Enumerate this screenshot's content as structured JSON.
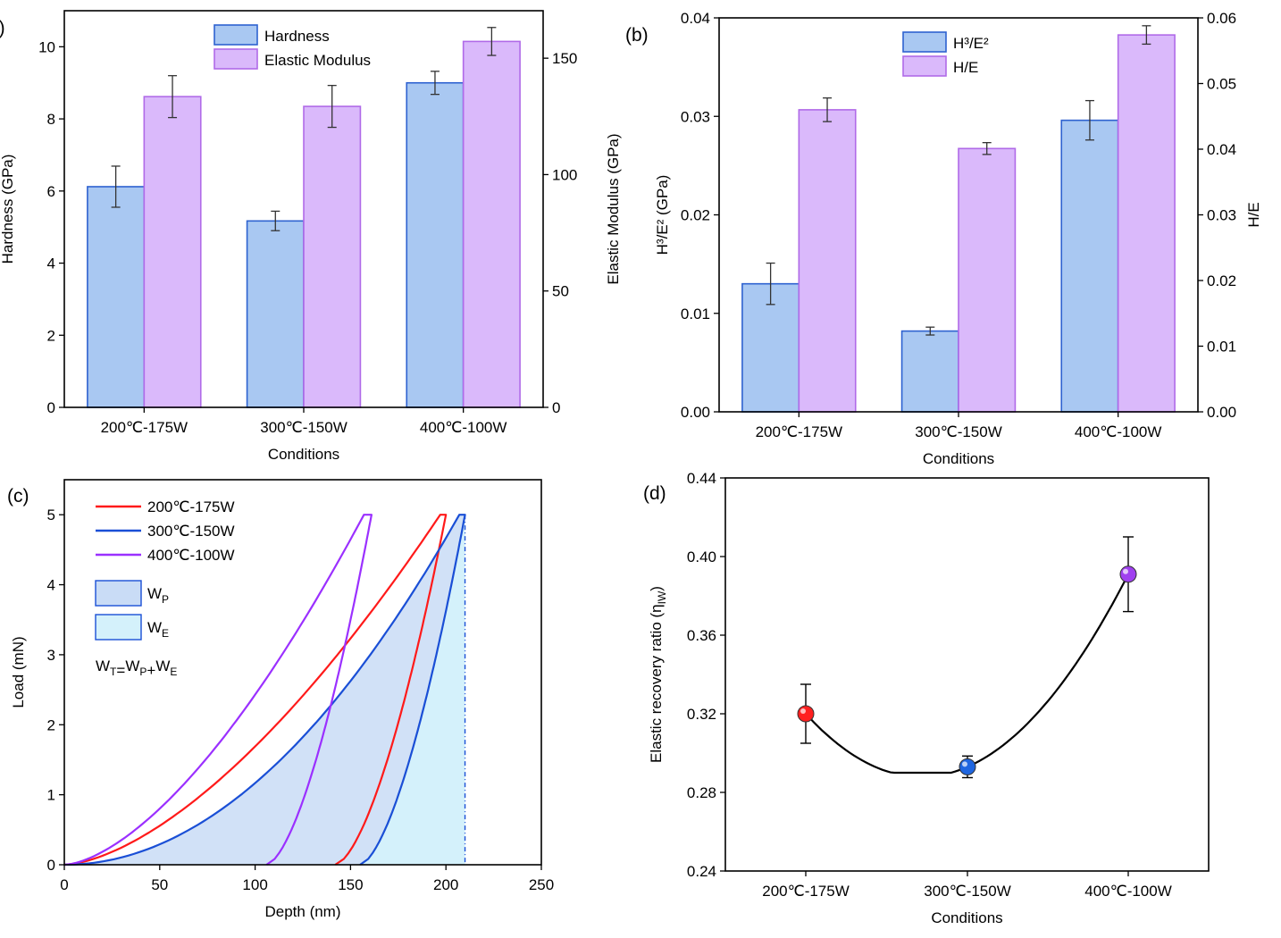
{
  "chart_data": [
    {
      "panel": "(a)",
      "type": "bar",
      "categories": [
        "200℃-175W",
        "300℃-150W",
        "400℃-100W"
      ],
      "xlabel": "Conditions",
      "ylabel": "Hardness (GPa)",
      "ylabel_right": "Elastic Modulus (GPa)",
      "ylim": [
        0,
        11
      ],
      "yticks": [
        0,
        2,
        4,
        6,
        8,
        10
      ],
      "ylim_right": [
        0,
        170.4
      ],
      "yticks_right": [
        0,
        50,
        100,
        150
      ],
      "legend_position": "top-center",
      "colors": {
        "blue": "#a9c8f2",
        "blue_edge": "#2e62d0",
        "purple": "#dab9fb",
        "purple_edge": "#b06ae8"
      },
      "series": [
        {
          "name": "Hardness",
          "axis": "left",
          "values": [
            6.12,
            5.17,
            9.0
          ],
          "errors": [
            0.57,
            0.27,
            0.32
          ]
        },
        {
          "name": "Elastic Modulus",
          "axis": "right",
          "values": [
            133.5,
            129.3,
            157.2
          ],
          "errors": [
            9.0,
            9.0,
            6.0
          ]
        }
      ]
    },
    {
      "panel": "(b)",
      "type": "bar",
      "categories": [
        "200℃-175W",
        "300℃-150W",
        "400℃-100W"
      ],
      "xlabel": "Conditions",
      "ylabel": "H³/E² (GPa)",
      "ylabel_right": "H/E",
      "ylim": [
        0,
        0.04
      ],
      "yticks": [
        "0.00",
        "0.01",
        "0.02",
        "0.03",
        "0.04"
      ],
      "ylim_right": [
        0,
        0.06
      ],
      "yticks_right": [
        "0.00",
        "0.01",
        "0.02",
        "0.03",
        "0.04",
        "0.05",
        "0.06"
      ],
      "legend_position": "top-center",
      "series": [
        {
          "name": "H³/E²",
          "axis": "left",
          "values": [
            0.013,
            0.0082,
            0.0296
          ],
          "errors": [
            0.0021,
            0.0004,
            0.002
          ]
        },
        {
          "name": "H/E",
          "axis": "right",
          "values": [
            0.046,
            0.0401,
            0.0574
          ],
          "errors": [
            0.0018,
            0.0009,
            0.0014
          ]
        }
      ]
    },
    {
      "panel": "(c)",
      "type": "line",
      "xlabel": "Depth (nm)",
      "ylabel": "Load (mN)",
      "xlim": [
        0,
        250
      ],
      "ylim": [
        0,
        5.5
      ],
      "xticks": [
        0,
        50,
        100,
        150,
        200,
        250
      ],
      "yticks": [
        0,
        1,
        2,
        3,
        4,
        5
      ],
      "legend_position": "top-left",
      "series": [
        {
          "name": "200℃-175W",
          "color": "#ff1a1a",
          "max_depth": 197,
          "max_load": 5.0,
          "hold_end_depth": 200,
          "final_depth": 142,
          "loading_shape": "a*x^1.6"
        },
        {
          "name": "300℃-150W",
          "color": "#1a4fd6",
          "max_depth": 207,
          "max_load": 5.0,
          "hold_end_depth": 210,
          "final_depth": 155,
          "loading_shape": "a*x^2"
        },
        {
          "name": "400℃-100W",
          "color": "#9b30ff",
          "max_depth": 157,
          "max_load": 5.0,
          "hold_end_depth": 161,
          "final_depth": 106,
          "loading_shape": "a*x^1.6"
        }
      ],
      "areas": [
        {
          "name": "W",
          "sub": "P",
          "color": "#c9dcf6"
        },
        {
          "name": "W",
          "sub": "E",
          "color": "#d4f1fb"
        }
      ],
      "equation": {
        "lhs": "W",
        "lhs_sub": "T",
        "t1": "W",
        "t1_sub": "P",
        "t2": "W",
        "t2_sub": "E"
      },
      "dashed_line_depth": 210
    },
    {
      "panel": "(d)",
      "type": "scatter",
      "categories": [
        "200℃-175W",
        "300℃-150W",
        "400℃-100W"
      ],
      "xlabel": "Conditions",
      "ylabel": "Elastic recovery ratio (η",
      "ylabel_sub": "IW",
      "ylabel_end": ")",
      "ylim": [
        0.24,
        0.44
      ],
      "yticks": [
        "0.24",
        "0.28",
        "0.32",
        "0.36",
        "0.40",
        "0.44"
      ],
      "points": [
        {
          "x": "200℃-175W",
          "y": 0.32,
          "error": 0.015,
          "color": "#ff2020"
        },
        {
          "x": "300℃-150W",
          "y": 0.293,
          "error": 0.0055,
          "color": "#1f66e0"
        },
        {
          "x": "400℃-100W",
          "y": 0.391,
          "error": 0.019,
          "color": "#a040f0"
        }
      ],
      "fit_line": "smooth curve through points",
      "fit_min": 0.29
    }
  ]
}
